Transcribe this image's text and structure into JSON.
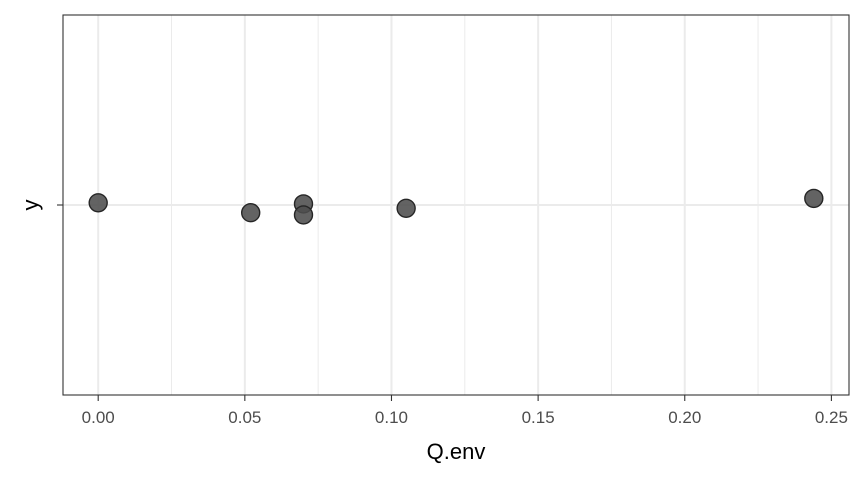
{
  "chart_data": {
    "type": "scatter",
    "xlabel": "Q.env",
    "ylabel": "y",
    "xlim": [
      -0.012,
      0.256
    ],
    "x_ticks": [
      0.0,
      0.05,
      0.1,
      0.15,
      0.2,
      0.25
    ],
    "x_tick_labels": [
      "0.00",
      "0.05",
      "0.10",
      "0.15",
      "0.20",
      "0.25"
    ],
    "x_minor_ticks": [
      0.025,
      0.075,
      0.125,
      0.175,
      0.225
    ],
    "y_ticks": [
      "y"
    ],
    "grid": true,
    "point_color": "#4d4d4d",
    "points": [
      {
        "x": 0.0,
        "jitter": 0.02
      },
      {
        "x": 0.052,
        "jitter": -0.07
      },
      {
        "x": 0.07,
        "jitter": 0.01
      },
      {
        "x": 0.07,
        "jitter": -0.09
      },
      {
        "x": 0.105,
        "jitter": -0.03
      },
      {
        "x": 0.244,
        "jitter": 0.06
      }
    ]
  }
}
